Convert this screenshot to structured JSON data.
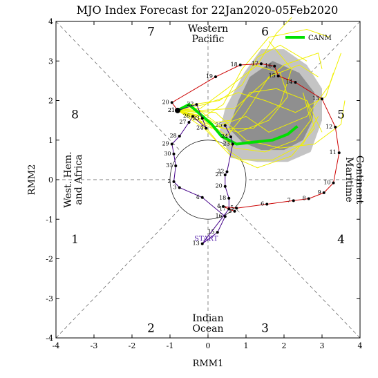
{
  "chart_data": {
    "type": "line",
    "title": "MJO Index Forecast for 22Jan2020-05Feb2020",
    "xlabel": "RMM1",
    "ylabel": "RMM2",
    "xlim": [
      -4,
      4
    ],
    "ylim": [
      -4,
      4
    ],
    "x_ticks": [
      "-4",
      "-3",
      "-2",
      "-1",
      "0",
      "1",
      "2",
      "3",
      "4"
    ],
    "y_ticks": [
      "-4",
      "-3",
      "-2",
      "-1",
      "0",
      "1",
      "2",
      "3",
      "4"
    ],
    "legend": {
      "position": "top-right",
      "label": "CANM",
      "color": "#00e000"
    },
    "phase_numbers": [
      {
        "label": "1",
        "x": -3.5,
        "y": -1.5
      },
      {
        "label": "2",
        "x": -1.5,
        "y": -3.75
      },
      {
        "label": "3",
        "x": 1.5,
        "y": -3.75
      },
      {
        "label": "4",
        "x": 3.5,
        "y": -1.5
      },
      {
        "label": "5",
        "x": 3.5,
        "y": 1.65
      },
      {
        "label": "6",
        "x": 1.5,
        "y": 3.75
      },
      {
        "label": "7",
        "x": -1.5,
        "y": 3.75
      },
      {
        "label": "8",
        "x": -3.5,
        "y": 1.65
      }
    ],
    "region_labels": {
      "top": [
        "Western",
        "Pacific"
      ],
      "bottom": [
        "Indian",
        "Ocean"
      ],
      "left": [
        "West. Hem.",
        "and Africa"
      ],
      "right": [
        "Maritime",
        "Continent"
      ]
    },
    "observed_red": {
      "color": "#cc0000",
      "points": [
        {
          "label": "3",
          "x": 0.7,
          "y": -0.8
        },
        {
          "label": "4",
          "x": 0.4,
          "y": -0.68
        },
        {
          "label": "5",
          "x": 0.75,
          "y": -0.72
        },
        {
          "label": "6",
          "x": 1.55,
          "y": -0.62
        },
        {
          "label": "7",
          "x": 2.25,
          "y": -0.53
        },
        {
          "label": "8",
          "x": 2.65,
          "y": -0.48
        },
        {
          "label": "9",
          "x": 3.05,
          "y": -0.33
        },
        {
          "label": "10",
          "x": 3.3,
          "y": -0.08
        },
        {
          "label": "11",
          "x": 3.45,
          "y": 0.68
        },
        {
          "label": "12",
          "x": 3.35,
          "y": 1.33
        },
        {
          "label": "13",
          "x": 3.0,
          "y": 2.04
        },
        {
          "label": "14",
          "x": 2.3,
          "y": 2.46
        },
        {
          "label": "15",
          "x": 1.85,
          "y": 2.62
        },
        {
          "label": "16",
          "x": 1.75,
          "y": 2.87
        },
        {
          "label": "17",
          "x": 1.4,
          "y": 2.93
        },
        {
          "label": "18",
          "x": 0.85,
          "y": 2.9
        },
        {
          "label": "19",
          "x": 0.2,
          "y": 2.6
        },
        {
          "label": "20",
          "x": -0.95,
          "y": 1.95
        },
        {
          "label": "21",
          "x": -0.8,
          "y": 1.75
        }
      ]
    },
    "observed_purple": {
      "color": "#440088",
      "points": [
        {
          "label": "21",
          "x": -0.8,
          "y": 1.75
        },
        {
          "label": "22",
          "x": -0.3,
          "y": 1.9
        },
        {
          "label": "23",
          "x": -0.15,
          "y": 1.55
        },
        {
          "label": "24",
          "x": -0.05,
          "y": 1.3
        },
        {
          "label": "26",
          "x": -0.4,
          "y": 1.6
        },
        {
          "label": "27",
          "x": -0.5,
          "y": 1.45
        },
        {
          "label": "28",
          "x": -0.75,
          "y": 1.1
        },
        {
          "label": "29",
          "x": -0.95,
          "y": 0.9
        },
        {
          "label": "30",
          "x": -0.9,
          "y": 0.65
        },
        {
          "label": "31",
          "x": -0.85,
          "y": 0.35
        },
        {
          "label": "2",
          "x": -0.9,
          "y": -0.05
        },
        {
          "label": "3",
          "x": -0.75,
          "y": -0.2
        },
        {
          "label": "4",
          "x": -0.15,
          "y": -0.45
        },
        {
          "label": "16",
          "x": 0.45,
          "y": -0.93
        },
        {
          "label": "15",
          "x": 0.25,
          "y": -1.33
        },
        {
          "label": "13",
          "x": -0.15,
          "y": -1.62
        },
        {
          "label": "17",
          "x": 0.55,
          "y": -0.74
        },
        {
          "label": "18",
          "x": 0.55,
          "y": -0.47
        },
        {
          "label": "20",
          "x": 0.45,
          "y": -0.17
        },
        {
          "label": "21",
          "x": 0.45,
          "y": 0.12
        },
        {
          "label": "22",
          "x": 0.5,
          "y": 0.2
        },
        {
          "label": "23",
          "x": 0.65,
          "y": 0.9
        },
        {
          "label": "24",
          "x": 0.6,
          "y": 1.08
        },
        {
          "label": "25",
          "x": 0.45,
          "y": 1.37
        }
      ]
    },
    "start_label": "START",
    "ensemble_mean": {
      "name": "CANM",
      "color": "#00e000",
      "points": [
        {
          "x": -0.8,
          "y": 1.75
        },
        {
          "x": -0.5,
          "y": 1.9
        },
        {
          "x": -0.2,
          "y": 1.65
        },
        {
          "x": 0.1,
          "y": 1.4
        },
        {
          "x": 0.35,
          "y": 1.1
        },
        {
          "x": 0.75,
          "y": 0.9
        },
        {
          "x": 1.2,
          "y": 0.95
        },
        {
          "x": 1.7,
          "y": 1.0
        },
        {
          "x": 2.1,
          "y": 1.15
        },
        {
          "x": 2.35,
          "y": 1.35
        }
      ]
    },
    "members": [
      {
        "color": "#f0f000",
        "points": [
          {
            "x": -0.8,
            "y": 1.75
          },
          {
            "x": -0.3,
            "y": 1.8
          },
          {
            "x": 0.2,
            "y": 1.45
          },
          {
            "x": 0.6,
            "y": 1.5
          },
          {
            "x": 1.1,
            "y": 2.2
          },
          {
            "x": 1.8,
            "y": 2.3
          },
          {
            "x": 2.6,
            "y": 2.0
          },
          {
            "x": 3.0,
            "y": 1.2
          }
        ]
      },
      {
        "color": "#f0f000",
        "points": [
          {
            "x": -0.8,
            "y": 1.75
          },
          {
            "x": -0.2,
            "y": 1.6
          },
          {
            "x": 0.5,
            "y": 1.1
          },
          {
            "x": 1.0,
            "y": 1.7
          },
          {
            "x": 1.6,
            "y": 2.6
          },
          {
            "x": 2.4,
            "y": 2.9
          },
          {
            "x": 2.9,
            "y": 2.6
          }
        ]
      },
      {
        "color": "#f0f000",
        "points": [
          {
            "x": -0.8,
            "y": 1.75
          },
          {
            "x": -0.1,
            "y": 1.5
          },
          {
            "x": 0.7,
            "y": 0.8
          },
          {
            "x": 1.5,
            "y": 0.7
          },
          {
            "x": 2.3,
            "y": 1.0
          },
          {
            "x": 2.7,
            "y": 1.5
          },
          {
            "x": 2.5,
            "y": 2.2
          }
        ]
      },
      {
        "color": "#f0f000",
        "points": [
          {
            "x": -0.8,
            "y": 1.75
          },
          {
            "x": -0.4,
            "y": 1.9
          },
          {
            "x": 0.3,
            "y": 2.0
          },
          {
            "x": 0.9,
            "y": 2.4
          },
          {
            "x": 1.3,
            "y": 3.1
          },
          {
            "x": 1.9,
            "y": 3.4
          },
          {
            "x": 2.6,
            "y": 3.0
          }
        ]
      },
      {
        "color": "#f0f000",
        "points": [
          {
            "x": -0.8,
            "y": 1.75
          },
          {
            "x": -0.1,
            "y": 1.3
          },
          {
            "x": 0.6,
            "y": 0.6
          },
          {
            "x": 1.3,
            "y": 0.3
          },
          {
            "x": 2.2,
            "y": 0.6
          },
          {
            "x": 2.8,
            "y": 1.3
          },
          {
            "x": 2.6,
            "y": 2.0
          }
        ]
      },
      {
        "color": "#f0f000",
        "points": [
          {
            "x": -0.8,
            "y": 1.75
          },
          {
            "x": -0.3,
            "y": 1.7
          },
          {
            "x": 0.4,
            "y": 1.3
          },
          {
            "x": 1.2,
            "y": 1.3
          },
          {
            "x": 1.9,
            "y": 1.9
          },
          {
            "x": 2.2,
            "y": 2.8
          },
          {
            "x": 1.6,
            "y": 3.5
          }
        ]
      },
      {
        "color": "#f0f000",
        "points": [
          {
            "x": -0.8,
            "y": 1.75
          },
          {
            "x": -0.2,
            "y": 1.75
          },
          {
            "x": 0.7,
            "y": 1.8
          },
          {
            "x": 1.4,
            "y": 2.4
          },
          {
            "x": 2.0,
            "y": 2.9
          },
          {
            "x": 2.9,
            "y": 3.2
          },
          {
            "x": 3.0,
            "y": 2.8
          }
        ]
      },
      {
        "color": "#f0f000",
        "points": [
          {
            "x": -0.8,
            "y": 1.75
          },
          {
            "x": 0.0,
            "y": 1.4
          },
          {
            "x": 0.8,
            "y": 1.2
          },
          {
            "x": 1.6,
            "y": 1.5
          },
          {
            "x": 2.1,
            "y": 2.1
          },
          {
            "x": 1.9,
            "y": 2.7
          },
          {
            "x": 1.2,
            "y": 2.9
          }
        ]
      },
      {
        "color": "#f0f000",
        "points": [
          {
            "x": -0.8,
            "y": 1.75
          },
          {
            "x": -0.3,
            "y": 1.6
          },
          {
            "x": 0.3,
            "y": 0.9
          },
          {
            "x": 0.9,
            "y": 0.5
          },
          {
            "x": 1.7,
            "y": 0.5
          },
          {
            "x": 2.5,
            "y": 0.9
          },
          {
            "x": 2.9,
            "y": 1.6
          }
        ]
      },
      {
        "color": "#f0f000",
        "points": [
          {
            "x": -0.8,
            "y": 1.75
          },
          {
            "x": -0.1,
            "y": 1.9
          },
          {
            "x": 0.8,
            "y": 2.2
          },
          {
            "x": 1.5,
            "y": 2.0
          },
          {
            "x": 2.3,
            "y": 1.7
          },
          {
            "x": 3.1,
            "y": 2.1
          },
          {
            "x": 3.3,
            "y": 2.7
          }
        ]
      },
      {
        "color": "#f0f000",
        "points": [
          {
            "x": -0.8,
            "y": 1.75
          },
          {
            "x": 0.2,
            "y": 1.7
          },
          {
            "x": 1.0,
            "y": 1.0
          },
          {
            "x": 1.9,
            "y": 0.8
          },
          {
            "x": 2.8,
            "y": 0.9
          },
          {
            "x": 3.5,
            "y": 1.4
          },
          {
            "x": 3.6,
            "y": 2.0
          }
        ]
      },
      {
        "color": "#f0f000",
        "points": [
          {
            "x": -0.8,
            "y": 1.75
          },
          {
            "x": -0.2,
            "y": 1.8
          },
          {
            "x": 0.5,
            "y": 2.3
          },
          {
            "x": 1.3,
            "y": 2.9
          },
          {
            "x": 1.8,
            "y": 3.7
          },
          {
            "x": 2.2,
            "y": 4.1
          }
        ]
      },
      {
        "color": "#f0f000",
        "points": [
          {
            "x": -0.8,
            "y": 1.75
          },
          {
            "x": -0.1,
            "y": 1.6
          },
          {
            "x": 0.4,
            "y": 1.9
          },
          {
            "x": 0.9,
            "y": 2.8
          },
          {
            "x": 1.6,
            "y": 3.6
          },
          {
            "x": 2.6,
            "y": 3.8
          },
          {
            "x": 3.2,
            "y": 3.6
          }
        ]
      },
      {
        "color": "#f0f000",
        "points": [
          {
            "x": -0.8,
            "y": 1.75
          },
          {
            "x": 0.1,
            "y": 1.3
          },
          {
            "x": 1.0,
            "y": 1.6
          },
          {
            "x": 1.6,
            "y": 1.2
          },
          {
            "x": 2.6,
            "y": 1.6
          },
          {
            "x": 3.2,
            "y": 2.4
          },
          {
            "x": 3.5,
            "y": 3.2
          }
        ]
      }
    ],
    "spread_dark": [
      {
        "x": 0.55,
        "y": 1.3
      },
      {
        "x": 0.8,
        "y": 2.0
      },
      {
        "x": 1.1,
        "y": 2.6
      },
      {
        "x": 1.7,
        "y": 3.0
      },
      {
        "x": 2.4,
        "y": 2.7
      },
      {
        "x": 2.8,
        "y": 2.2
      },
      {
        "x": 2.75,
        "y": 1.5
      },
      {
        "x": 2.5,
        "y": 1.0
      },
      {
        "x": 2.0,
        "y": 0.75
      },
      {
        "x": 1.4,
        "y": 0.75
      },
      {
        "x": 0.9,
        "y": 0.95
      }
    ],
    "spread_light": [
      {
        "x": 0.3,
        "y": 1.2
      },
      {
        "x": 0.45,
        "y": 1.8
      },
      {
        "x": 0.95,
        "y": 2.7
      },
      {
        "x": 1.4,
        "y": 3.3
      },
      {
        "x": 2.0,
        "y": 3.3
      },
      {
        "x": 2.6,
        "y": 2.9
      },
      {
        "x": 3.0,
        "y": 2.3
      },
      {
        "x": 3.0,
        "y": 1.5
      },
      {
        "x": 2.7,
        "y": 0.7
      },
      {
        "x": 2.1,
        "y": 0.45
      },
      {
        "x": 1.3,
        "y": 0.45
      },
      {
        "x": 0.6,
        "y": 0.55
      }
    ]
  }
}
